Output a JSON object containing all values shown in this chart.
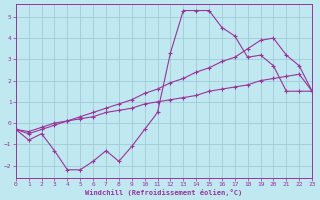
{
  "xlabel": "Windchill (Refroidissement éolien,°C)",
  "bg_color": "#c0e8f0",
  "grid_color": "#a0ccd8",
  "line_color": "#993399",
  "xlim": [
    0,
    23
  ],
  "ylim": [
    -2.6,
    5.6
  ],
  "xticks": [
    0,
    1,
    2,
    3,
    4,
    5,
    6,
    7,
    8,
    9,
    10,
    11,
    12,
    13,
    14,
    15,
    16,
    17,
    18,
    19,
    20,
    21,
    22,
    23
  ],
  "yticks": [
    -2,
    -1,
    0,
    1,
    2,
    3,
    4,
    5
  ],
  "curve1_x": [
    0,
    1,
    2,
    3,
    4,
    5,
    6,
    7,
    8,
    9,
    10,
    11,
    12,
    13,
    14,
    15,
    16,
    17,
    18,
    19,
    20,
    21,
    22,
    23
  ],
  "curve1_y": [
    -0.3,
    -0.8,
    -0.5,
    -1.3,
    -2.2,
    -2.2,
    -1.8,
    -1.3,
    -1.8,
    -1.1,
    -0.3,
    0.5,
    3.3,
    5.3,
    5.3,
    5.3,
    4.5,
    4.1,
    3.1,
    3.2,
    2.7,
    1.5,
    1.5,
    1.5
  ],
  "curve2_x": [
    0,
    1,
    2,
    3,
    4,
    5,
    6,
    7,
    8,
    9,
    10,
    11,
    12,
    13,
    14,
    15,
    16,
    17,
    18,
    19,
    20,
    21,
    22,
    23
  ],
  "curve2_y": [
    -0.3,
    -0.5,
    -0.3,
    -0.1,
    0.1,
    0.3,
    0.5,
    0.7,
    0.9,
    1.1,
    1.4,
    1.6,
    1.9,
    2.1,
    2.4,
    2.6,
    2.9,
    3.1,
    3.5,
    3.9,
    4.0,
    3.2,
    2.7,
    1.5
  ],
  "curve3_x": [
    0,
    1,
    2,
    3,
    4,
    5,
    6,
    7,
    8,
    9,
    10,
    11,
    12,
    13,
    14,
    15,
    16,
    17,
    18,
    19,
    20,
    21,
    22,
    23
  ],
  "curve3_y": [
    -0.3,
    -0.4,
    -0.2,
    0.0,
    0.1,
    0.2,
    0.3,
    0.5,
    0.6,
    0.7,
    0.9,
    1.0,
    1.1,
    1.2,
    1.3,
    1.5,
    1.6,
    1.7,
    1.8,
    2.0,
    2.1,
    2.2,
    2.3,
    1.5
  ]
}
